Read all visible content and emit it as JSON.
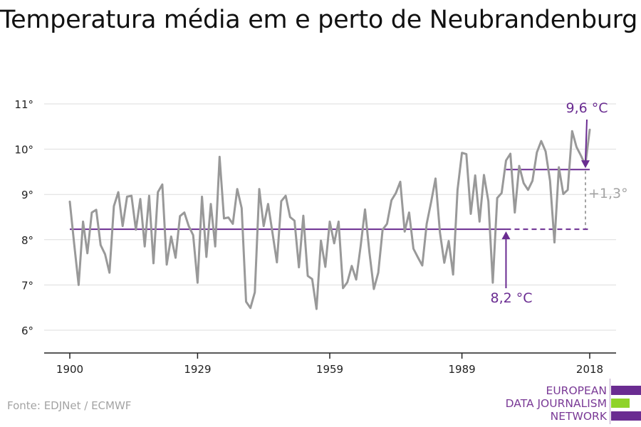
{
  "title": "Temperatura média em e perto de Neubrandenburg",
  "source": "Fonte: EDJNet / ECMWF",
  "logo": {
    "lines": [
      "EUROPEAN",
      "DATA JOURNALISM",
      "NETWORK"
    ]
  },
  "colors": {
    "series": "#999999",
    "accent": "#6a2c91",
    "logo_green": "#8fd32a",
    "logo_purple": "#6a2c91",
    "grid": "#dddddd"
  },
  "chart_data": {
    "type": "line",
    "title": "Temperatura média em e perto de Neubrandenburg",
    "xlim": [
      1900,
      2018
    ],
    "ylim": [
      5.5,
      11.2
    ],
    "x_ticks": [
      1900,
      1929,
      1959,
      1989,
      2018
    ],
    "x_tick_labels": [
      "1900",
      "1929",
      "1959",
      "1989",
      "2018"
    ],
    "y_ticks": [
      6,
      7,
      8,
      9,
      10,
      11
    ],
    "y_tick_labels": [
      "6°",
      "7°",
      "8°",
      "9°",
      "10°",
      "11°"
    ],
    "grid": "horizontal",
    "series": [
      {
        "x": [
          1900,
          1901,
          1902,
          1903,
          1904,
          1905,
          1906,
          1907,
          1908,
          1909,
          1910,
          1911,
          1912,
          1913,
          1914,
          1915,
          1916,
          1917,
          1918,
          1919,
          1920,
          1921,
          1922,
          1923,
          1924,
          1925,
          1926,
          1927,
          1928,
          1929,
          1930,
          1931,
          1932,
          1933,
          1934,
          1935,
          1936,
          1937,
          1938,
          1939,
          1940,
          1941,
          1942,
          1943,
          1944,
          1945,
          1946,
          1947,
          1948,
          1949,
          1950,
          1951,
          1952,
          1953,
          1954,
          1955,
          1956,
          1957,
          1958,
          1959,
          1960,
          1961,
          1962,
          1963,
          1964,
          1965,
          1966,
          1967,
          1968,
          1969,
          1970,
          1971,
          1972,
          1973,
          1974,
          1975,
          1976,
          1977,
          1978,
          1979,
          1980,
          1981,
          1982,
          1983,
          1984,
          1985,
          1986,
          1987,
          1988,
          1989,
          1990,
          1991,
          1992,
          1993,
          1994,
          1995,
          1996,
          1997,
          1998,
          1999,
          2000,
          2001,
          2002,
          2003,
          2004,
          2005,
          2006,
          2007,
          2008,
          2009,
          2010,
          2011,
          2012,
          2013,
          2014,
          2015,
          2016,
          2017,
          2018
        ],
        "values": [
          8.84,
          7.9,
          7.0,
          8.4,
          7.7,
          8.6,
          8.66,
          7.88,
          7.68,
          7.27,
          8.74,
          9.05,
          8.3,
          8.95,
          8.97,
          8.22,
          8.9,
          7.85,
          8.97,
          7.48,
          9.05,
          9.22,
          7.45,
          8.07,
          7.6,
          8.52,
          8.6,
          8.3,
          8.1,
          7.05,
          8.95,
          7.62,
          8.79,
          7.85,
          9.83,
          8.47,
          8.49,
          8.35,
          9.12,
          8.7,
          6.63,
          6.49,
          6.84,
          9.12,
          8.3,
          8.79,
          8.15,
          7.5,
          8.85,
          8.97,
          8.5,
          8.42,
          7.39,
          8.53,
          7.2,
          7.13,
          6.47,
          7.98,
          7.4,
          8.4,
          7.92,
          8.4,
          6.93,
          7.06,
          7.42,
          7.12,
          7.85,
          8.67,
          7.72,
          6.91,
          7.27,
          8.22,
          8.35,
          8.87,
          9.03,
          9.28,
          8.18,
          8.6,
          7.8,
          7.61,
          7.43,
          8.35,
          8.83,
          9.35,
          8.16,
          7.49,
          7.97,
          7.23,
          9.1,
          9.92,
          9.89,
          8.57,
          9.42,
          8.4,
          9.43,
          8.85,
          7.05,
          8.92,
          9.03,
          9.75,
          9.9,
          8.6,
          9.63,
          9.25,
          9.1,
          9.3,
          9.93,
          10.18,
          9.95,
          9.3,
          7.94,
          9.6,
          9.01,
          9.1,
          10.4,
          10.05,
          9.86,
          9.65,
          10.43
        ]
      }
    ],
    "annotations": {
      "baseline_label": "8,2 °C",
      "baseline_value": 8.23,
      "baseline_solid_range": [
        1900,
        1999
      ],
      "baseline_dashed_range": [
        1999,
        2018
      ],
      "recent_label": "9,6 °C",
      "recent_value": 9.55,
      "recent_range": [
        1999,
        2018
      ],
      "difference_label": "+1,3°"
    }
  }
}
